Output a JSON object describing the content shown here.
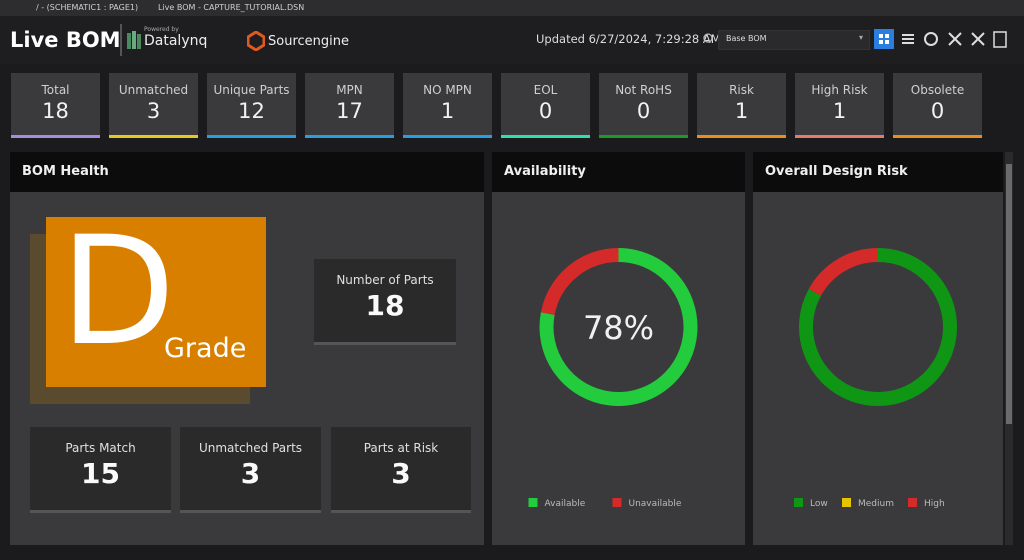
{
  "tabs": [
    "/ - (SCHEMATIC1 : PAGE1)",
    "Live BOM - CAPTURE_TUTORIAL.DSN"
  ],
  "header": {
    "title": "Live BOM",
    "powered_by": "Powered by",
    "datalynq": "Datalynq",
    "sourcengine": "Sourcengine",
    "updated": "Updated 6/27/2024, 7:29:28 AM",
    "view_select": "Base BOM"
  },
  "stats": [
    {
      "label": "Total",
      "value": 18,
      "color": "#a78bdf"
    },
    {
      "label": "Unmatched",
      "value": 3,
      "color": "#e8c81a"
    },
    {
      "label": "Unique Parts",
      "value": 12,
      "color": "#2a9fe0"
    },
    {
      "label": "MPN",
      "value": 17,
      "color": "#2a9fe0"
    },
    {
      "label": "NO MPN",
      "value": 1,
      "color": "#2a9fe0"
    },
    {
      "label": "EOL",
      "value": 0,
      "color": "#2ee0b0"
    },
    {
      "label": "Not RoHS",
      "value": 0,
      "color": "#1a9a2a"
    },
    {
      "label": "Risk",
      "value": 1,
      "color": "#e8901a"
    },
    {
      "label": "High Risk",
      "value": 1,
      "color": "#e87a6a"
    },
    {
      "label": "Obsolete",
      "value": 0,
      "color": "#e8901a"
    }
  ],
  "bom_health": {
    "title": "BOM Health",
    "grade": "D",
    "grade_label": "Grade",
    "number_of_parts": {
      "label": "Number of Parts",
      "value": 18
    },
    "cards": [
      {
        "label": "Parts Match",
        "value": 15
      },
      {
        "label": "Unmatched Parts",
        "value": 3
      },
      {
        "label": "Parts at Risk",
        "value": 3
      }
    ]
  },
  "availability": {
    "title": "Availability",
    "center_label": "78%",
    "segments": [
      {
        "name": "Available",
        "value": 78,
        "color": "#22cc3c"
      },
      {
        "name": "Unavailable",
        "value": 22,
        "color": "#d42a2a"
      }
    ]
  },
  "design_risk": {
    "title": "Overall Design Risk",
    "segments": [
      {
        "name": "Low",
        "value": 83,
        "color": "#0f9614"
      },
      {
        "name": "Medium",
        "value": 0,
        "color": "#e8c400"
      },
      {
        "name": "High",
        "value": 17,
        "color": "#d42a2a"
      }
    ]
  }
}
